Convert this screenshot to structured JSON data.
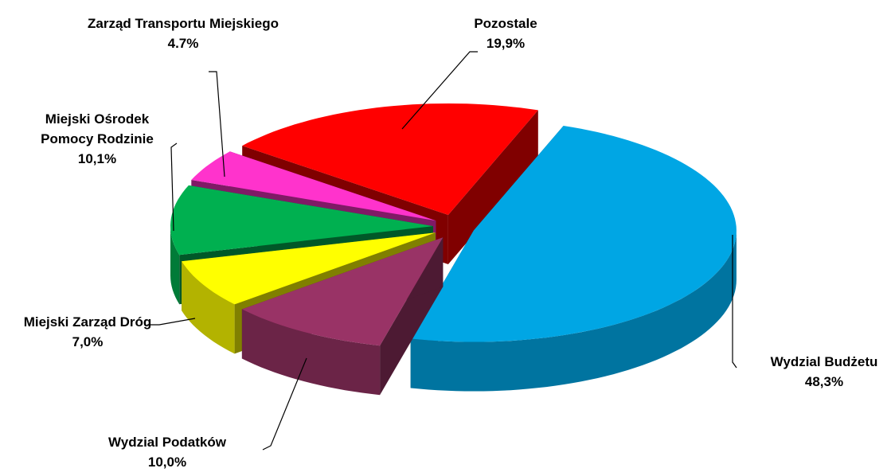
{
  "chart_data": {
    "type": "pie3d",
    "categories": [
      "Wydzial Budżetu",
      "Wydzial Podatków",
      "Miejski Zarząd Dróg",
      "Miejski Ośrodek Pomocy Rodzinie",
      "Zarząd Transportu Miejskiego",
      "Pozostale"
    ],
    "values": [
      48.3,
      10.0,
      7.0,
      10.1,
      4.7,
      19.9
    ],
    "value_labels": [
      "48,3%",
      "10,0%",
      "7,0%",
      "10,1%",
      "4.7%",
      "19,9%"
    ],
    "colors": [
      "#00a6e4",
      "#993366",
      "#ffff00",
      "#00b050",
      "#ff33cc",
      "#ff0000"
    ]
  }
}
